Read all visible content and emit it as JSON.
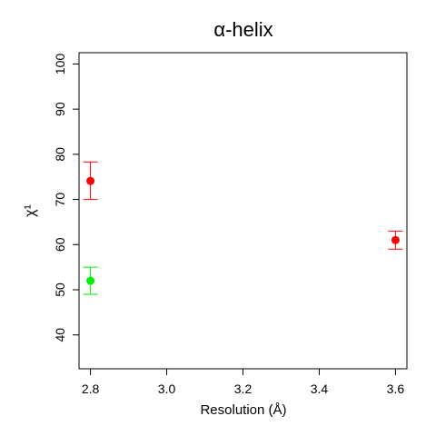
{
  "chart_data": {
    "type": "scatter",
    "title": "α-helix",
    "xlabel": "Resolution (Å)",
    "ylabel": "χ¹",
    "xlim": [
      2.77,
      3.63
    ],
    "ylim": [
      32.5,
      102.5
    ],
    "x_ticks": [
      "2.8",
      "3.0",
      "3.2",
      "3.4",
      "3.6"
    ],
    "y_ticks": [
      "40",
      "50",
      "60",
      "70",
      "80",
      "90",
      "100"
    ],
    "grid": false,
    "points": [
      {
        "x": 2.8,
        "y": 74.1,
        "err_low": 70.0,
        "err_high": 78.3,
        "color": "#ff0000"
      },
      {
        "x": 2.8,
        "y": 52.0,
        "err_low": 49.0,
        "err_high": 55.0,
        "color": "#00ee00"
      },
      {
        "x": 3.6,
        "y": 61.0,
        "err_low": 59.0,
        "err_high": 63.0,
        "color": "#ff0000"
      }
    ]
  }
}
